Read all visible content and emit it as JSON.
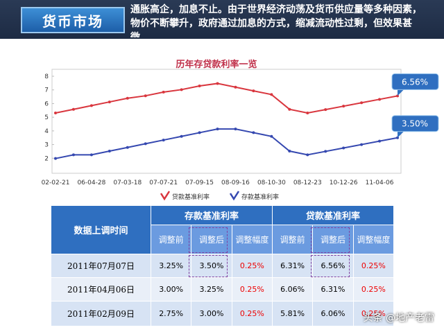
{
  "header": {
    "title": "货币市场",
    "text": "通胀高企，加息不止。由于世界经济动荡及货币供应量等多种因素，物价不断攀升，政府通过加息的方式，缩减流动性过剩，但效果甚微。"
  },
  "chart_data": {
    "type": "line",
    "title": "历年存贷款利率一览",
    "categories": [
      "02-02-21",
      null,
      "06-04-28",
      null,
      "07-03-18",
      null,
      "07-07-21",
      null,
      "07-09-15",
      null,
      "08-09-16",
      null,
      "08-10-30",
      null,
      "08-12-23",
      null,
      "10-12-26",
      null,
      "11-04-06",
      null
    ],
    "series": [
      {
        "name": "贷款基准利率",
        "color": "#d9363e",
        "values": [
          5.31,
          5.58,
          5.85,
          6.12,
          6.39,
          6.57,
          6.84,
          7.02,
          7.29,
          7.47,
          7.2,
          6.93,
          6.66,
          5.58,
          5.31,
          5.56,
          5.81,
          6.06,
          6.31,
          6.56
        ],
        "value_labels": [
          null,
          null,
          null,
          null,
          null,
          null,
          null,
          null,
          null,
          null,
          null,
          null,
          null,
          null,
          null,
          null,
          null,
          null,
          null,
          "6.56%"
        ]
      },
      {
        "name": "存款基准利率",
        "color": "#3548b0",
        "values": [
          1.98,
          2.25,
          2.25,
          2.52,
          2.79,
          3.06,
          3.33,
          3.6,
          3.87,
          4.14,
          4.14,
          3.87,
          3.6,
          2.52,
          2.25,
          2.5,
          2.75,
          3.0,
          3.25,
          3.5
        ],
        "value_labels": [
          null,
          null,
          null,
          null,
          null,
          null,
          null,
          null,
          null,
          null,
          null,
          null,
          null,
          null,
          null,
          null,
          null,
          null,
          null,
          "3.50%"
        ]
      }
    ],
    "ylim": [
      1,
      8
    ],
    "yticks": [
      2,
      3,
      4,
      5,
      6,
      7,
      8
    ],
    "legend": "bottom"
  },
  "table": {
    "time_header": "数据上调时间",
    "groups": [
      "存款基准利率",
      "贷款基准利率"
    ],
    "subheaders": [
      "调整前",
      "调整后",
      "调整幅度",
      "调整前",
      "调整后",
      "调整幅度"
    ],
    "rows": [
      [
        "2011年07月07日",
        "3.25%",
        "3.50%",
        "0.25%",
        "6.31%",
        "6.56%",
        "0.25%"
      ],
      [
        "2011年04月06日",
        "3.00%",
        "3.25%",
        "0.25%",
        "6.06%",
        "6.31%",
        "0.25%"
      ],
      [
        "2011年02月09日",
        "2.75%",
        "3.00%",
        "0.25%",
        "5.81%",
        "6.06%",
        "0.25%"
      ]
    ]
  },
  "watermark": "头条 @地产老雷"
}
